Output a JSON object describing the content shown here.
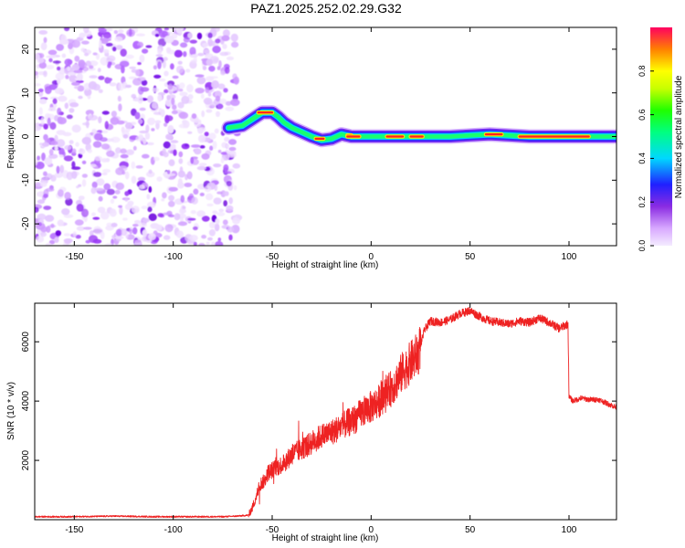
{
  "title": "PAZ1.2025.252.02.29.G32",
  "chart_data": [
    {
      "type": "heatmap",
      "panel": "spectrogram",
      "xlabel": "Height of straight line (km)",
      "ylabel": "Frequency (Hz)",
      "xlim": [
        -170,
        124
      ],
      "ylim": [
        -25,
        25
      ],
      "x_ticks": [
        -150,
        -100,
        -50,
        0,
        50,
        100
      ],
      "x_tick_labels": [
        "-150",
        "-100",
        "-50",
        "0",
        "50",
        "100"
      ],
      "y_ticks": [
        -20,
        -10,
        0,
        10,
        20
      ],
      "y_tick_labels": [
        "-20",
        "-10",
        "0",
        "10",
        "20"
      ],
      "noise_region_x": [
        -170,
        -70
      ],
      "ridge_track": {
        "x": [
          -72,
          -65,
          -60,
          -55,
          -50,
          -47,
          -44,
          -40,
          -35,
          -30,
          -25,
          -20,
          -15,
          -12,
          -10,
          0,
          10,
          25,
          40,
          60,
          80,
          100,
          124
        ],
        "y": [
          2,
          2.5,
          4,
          5.5,
          5.5,
          4.5,
          3.2,
          2,
          1,
          0,
          -0.8,
          -0.5,
          0.5,
          0.2,
          0,
          0,
          0,
          0,
          0,
          0.5,
          0,
          0,
          0
        ]
      },
      "peak_segments": [
        {
          "x": [
            -57,
            -50
          ],
          "y": 5.5
        },
        {
          "x": [
            -28,
            -24
          ],
          "y": -0.5
        },
        {
          "x": [
            -12,
            -10
          ],
          "y": 0.3
        },
        {
          "x": [
            -12,
            -6
          ],
          "y": 0
        },
        {
          "x": [
            8,
            16
          ],
          "y": 0
        },
        {
          "x": [
            20,
            26
          ],
          "y": 0
        },
        {
          "x": [
            58,
            66
          ],
          "y": 0.5
        },
        {
          "x": [
            75,
            110
          ],
          "y": 0
        }
      ],
      "colorbar": {
        "label": "Normalized spectral amplitude",
        "range": [
          0,
          1
        ],
        "ticks": [
          0.0,
          0.2,
          0.4,
          0.6,
          0.8
        ],
        "tick_labels": [
          "0.0",
          "0.2",
          "0.4",
          "0.6",
          "0.8"
        ]
      }
    },
    {
      "type": "line",
      "panel": "snr",
      "xlabel": "Height of straight line (km)",
      "ylabel": "SNR (10 * v/v)",
      "xlim": [
        -170,
        124
      ],
      "ylim": [
        0,
        7300
      ],
      "x_ticks": [
        -150,
        -100,
        -50,
        0,
        50,
        100
      ],
      "x_tick_labels": [
        "-150",
        "-100",
        "-50",
        "0",
        "50",
        "100"
      ],
      "y_ticks": [
        2000,
        4000,
        6000
      ],
      "y_tick_labels": [
        "2000",
        "4000",
        "6000"
      ],
      "series": [
        {
          "name": "SNR",
          "color": "#ee2222",
          "x": [
            -170,
            -150,
            -130,
            -110,
            -90,
            -75,
            -68,
            -62,
            -60,
            -58,
            -56,
            -54,
            -52,
            -48,
            -44,
            -40,
            -36,
            -32,
            -28,
            -24,
            -20,
            -16,
            -12,
            -8,
            -4,
            0,
            4,
            8,
            12,
            16,
            20,
            24,
            27,
            30,
            35,
            40,
            45,
            50,
            55,
            60,
            65,
            70,
            75,
            80,
            85,
            90,
            95,
            99.5,
            100,
            102,
            106,
            110,
            115,
            120,
            124
          ],
          "y": [
            100,
            100,
            120,
            100,
            100,
            100,
            120,
            150,
            400,
            800,
            1200,
            1300,
            1600,
            1750,
            1900,
            2200,
            2350,
            2500,
            2700,
            2850,
            2950,
            3100,
            3250,
            3400,
            3650,
            3800,
            4000,
            4250,
            4600,
            5000,
            5300,
            5650,
            6400,
            6700,
            6650,
            6750,
            6950,
            7050,
            6850,
            6700,
            6650,
            6600,
            6700,
            6650,
            6800,
            6650,
            6450,
            6600,
            4150,
            4000,
            4100,
            4050,
            4050,
            3900,
            3780
          ]
        }
      ]
    }
  ]
}
